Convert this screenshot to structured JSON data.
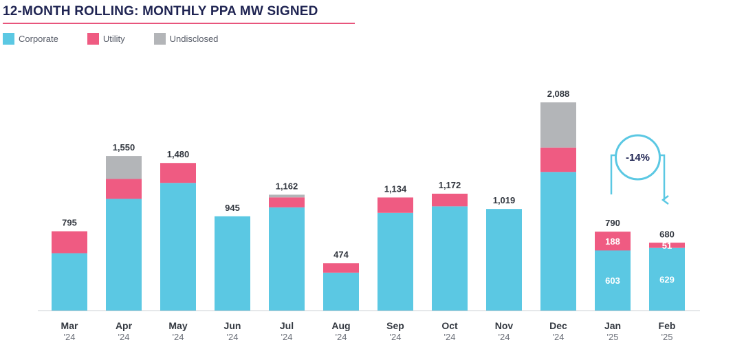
{
  "title": "12-MONTH ROLLING: MONTHLY PPA MW SIGNED",
  "legend": [
    {
      "label": "Corporate",
      "color": "#5bc8e3"
    },
    {
      "label": "Utility",
      "color": "#ef5b82"
    },
    {
      "label": "Undisclosed",
      "color": "#b3b5b8"
    }
  ],
  "colors": {
    "corporate": "#5bc8e3",
    "utility": "#ef5b82",
    "undisclosed": "#b3b5b8",
    "axis": "#c9ccd1",
    "arrow": "#5bc8e3"
  },
  "chart_data": {
    "type": "bar",
    "stacked": true,
    "categories": [
      "Mar",
      "Apr",
      "May",
      "Jun",
      "Jul",
      "Aug",
      "Sep",
      "Oct",
      "Nov",
      "Dec",
      "Jan",
      "Feb"
    ],
    "years": [
      "'24",
      "'24",
      "'24",
      "'24",
      "'24",
      "'24",
      "'24",
      "'24",
      "'24",
      "'24",
      "'25",
      "'25"
    ],
    "series": [
      {
        "name": "Corporate",
        "values": [
          575,
          1120,
          1280,
          945,
          1035,
          380,
          980,
          1045,
          1019,
          1390,
          603,
          629
        ]
      },
      {
        "name": "Utility",
        "values": [
          220,
          200,
          200,
          0,
          100,
          94,
          154,
          127,
          0,
          245,
          188,
          51
        ]
      },
      {
        "name": "Undisclosed",
        "values": [
          0,
          230,
          0,
          0,
          27,
          0,
          0,
          0,
          0,
          453,
          0,
          0
        ]
      }
    ],
    "totals": [
      "795",
      "1,550",
      "1,480",
      "945",
      "1,162",
      "474",
      "1,134",
      "1,172",
      "1,019",
      "2,088",
      "790",
      "680"
    ],
    "segment_labels": [
      {
        "index": 10,
        "series": "Corporate",
        "text": "603"
      },
      {
        "index": 10,
        "series": "Utility",
        "text": "188"
      },
      {
        "index": 11,
        "series": "Corporate",
        "text": "629"
      },
      {
        "index": 11,
        "series": "Utility",
        "text": "51"
      }
    ],
    "annotation": {
      "text": "-14%",
      "from": "Jan",
      "to": "Feb"
    },
    "ylim": [
      0,
      2088
    ],
    "grid": false
  }
}
